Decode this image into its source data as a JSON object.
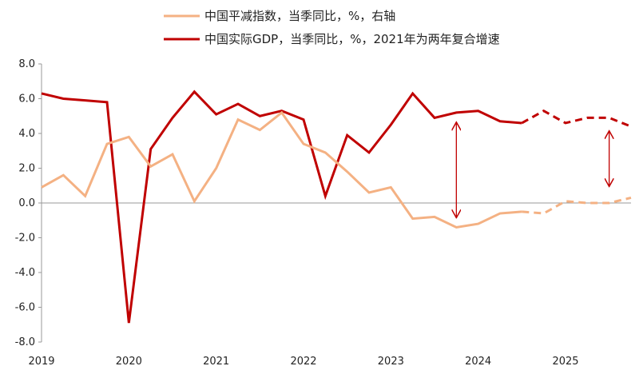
{
  "chart_data": {
    "type": "line",
    "legend": [
      {
        "label": "中国平减指数，当季同比，%，右轴",
        "color": "#F4B183",
        "series": "deflator"
      },
      {
        "label": "中国实际GDP，当季同比，%，2021年为两年复合增速",
        "color": "#C00000",
        "series": "gdp"
      }
    ],
    "y_ticks": [
      "8.0",
      "6.0",
      "4.0",
      "2.0",
      "0.0",
      "-2.0",
      "-4.0",
      "-6.0",
      "-8.0"
    ],
    "ylim": [
      -8,
      8
    ],
    "x_ticks": [
      "2019",
      "2020",
      "2021",
      "2022",
      "2023",
      "2024",
      "2025"
    ],
    "xlim": [
      0,
      27
    ],
    "series": [
      {
        "key": "gdp",
        "color": "#C00000",
        "x": [
          0,
          1,
          2,
          3,
          4,
          5,
          6,
          7,
          8,
          9,
          10,
          11,
          12,
          13,
          14,
          15,
          16,
          17,
          18,
          19,
          20,
          21,
          22,
          23,
          24,
          25,
          26,
          27
        ],
        "values": [
          6.3,
          6.0,
          5.9,
          5.8,
          -6.9,
          3.1,
          4.9,
          6.4,
          5.1,
          5.7,
          5.0,
          5.3,
          4.8,
          0.4,
          3.9,
          2.9,
          4.5,
          6.3,
          4.9,
          5.2,
          5.3,
          4.7,
          4.6,
          5.3,
          4.6,
          4.9,
          4.9,
          4.4
        ],
        "forecast_from_index": 22
      },
      {
        "key": "deflator",
        "color": "#F4B183",
        "x": [
          0,
          1,
          2,
          3,
          4,
          5,
          6,
          7,
          8,
          9,
          10,
          11,
          12,
          13,
          14,
          15,
          16,
          17,
          18,
          19,
          20,
          21,
          22,
          23,
          24,
          25,
          26,
          27
        ],
        "values": [
          0.9,
          1.6,
          0.4,
          3.4,
          3.8,
          2.1,
          2.8,
          0.1,
          2.0,
          4.8,
          4.2,
          5.2,
          3.4,
          2.9,
          1.8,
          0.6,
          0.9,
          -0.9,
          -0.8,
          -1.4,
          -1.2,
          -0.6,
          -0.5,
          -0.6,
          0.1,
          0.0,
          0.0,
          0.3
        ],
        "forecast_from_index": 22
      }
    ],
    "annotations": [
      {
        "type": "double-arrow",
        "x": 19.0,
        "y_from": 4.6,
        "y_to": -0.8,
        "color": "#C00000"
      },
      {
        "type": "double-arrow",
        "x": 26.0,
        "y_from": 4.1,
        "y_to": 1.0,
        "color": "#C00000"
      }
    ],
    "grid": false
  }
}
